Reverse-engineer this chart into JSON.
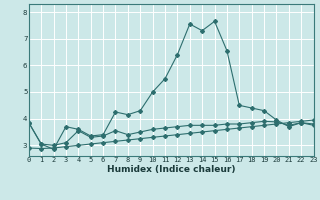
{
  "xlabel": "Humidex (Indice chaleur)",
  "background_color": "#cce8e8",
  "grid_color": "#ffffff",
  "line_color": "#2d6e6e",
  "xlim": [
    0,
    23
  ],
  "ylim": [
    2.6,
    8.3
  ],
  "yticks": [
    3,
    4,
    5,
    6,
    7,
    8
  ],
  "xticks": [
    0,
    1,
    2,
    3,
    4,
    5,
    6,
    7,
    8,
    9,
    10,
    11,
    12,
    13,
    14,
    15,
    16,
    17,
    18,
    19,
    20,
    21,
    22,
    23
  ],
  "series1": {
    "x": [
      0,
      1,
      2,
      3,
      4,
      5,
      6,
      7,
      8,
      9,
      10,
      11,
      12,
      13,
      14,
      15,
      16,
      17,
      18,
      19,
      20,
      21,
      22,
      23
    ],
    "y": [
      3.85,
      3.05,
      2.85,
      3.7,
      3.6,
      3.35,
      3.4,
      4.25,
      4.15,
      4.3,
      5.0,
      5.5,
      6.4,
      7.55,
      7.3,
      7.65,
      6.55,
      4.5,
      4.4,
      4.3,
      3.95,
      3.7,
      3.85,
      3.75
    ]
  },
  "series2": {
    "x": [
      0,
      1,
      2,
      3,
      4,
      5,
      6,
      7,
      8,
      9,
      10,
      11,
      12,
      13,
      14,
      15,
      16,
      17,
      18,
      19,
      20,
      21,
      22,
      23
    ],
    "y": [
      2.9,
      2.88,
      2.9,
      2.95,
      3.0,
      3.05,
      3.1,
      3.15,
      3.2,
      3.25,
      3.3,
      3.35,
      3.4,
      3.45,
      3.5,
      3.55,
      3.6,
      3.65,
      3.7,
      3.75,
      3.8,
      3.85,
      3.9,
      3.95
    ]
  },
  "series3": {
    "x": [
      0,
      1,
      2,
      3,
      4,
      5,
      6,
      7,
      8,
      9,
      10,
      11,
      12,
      13,
      14,
      15,
      16,
      17,
      18,
      19,
      20,
      21,
      22,
      23
    ],
    "y": [
      3.85,
      3.05,
      3.0,
      3.1,
      3.55,
      3.3,
      3.35,
      3.55,
      3.4,
      3.5,
      3.6,
      3.65,
      3.7,
      3.75,
      3.75,
      3.75,
      3.8,
      3.8,
      3.85,
      3.9,
      3.88,
      3.75,
      3.85,
      3.8
    ]
  },
  "xlabel_fontsize": 6.5,
  "tick_fontsize": 5.0,
  "marker_size": 2.0
}
